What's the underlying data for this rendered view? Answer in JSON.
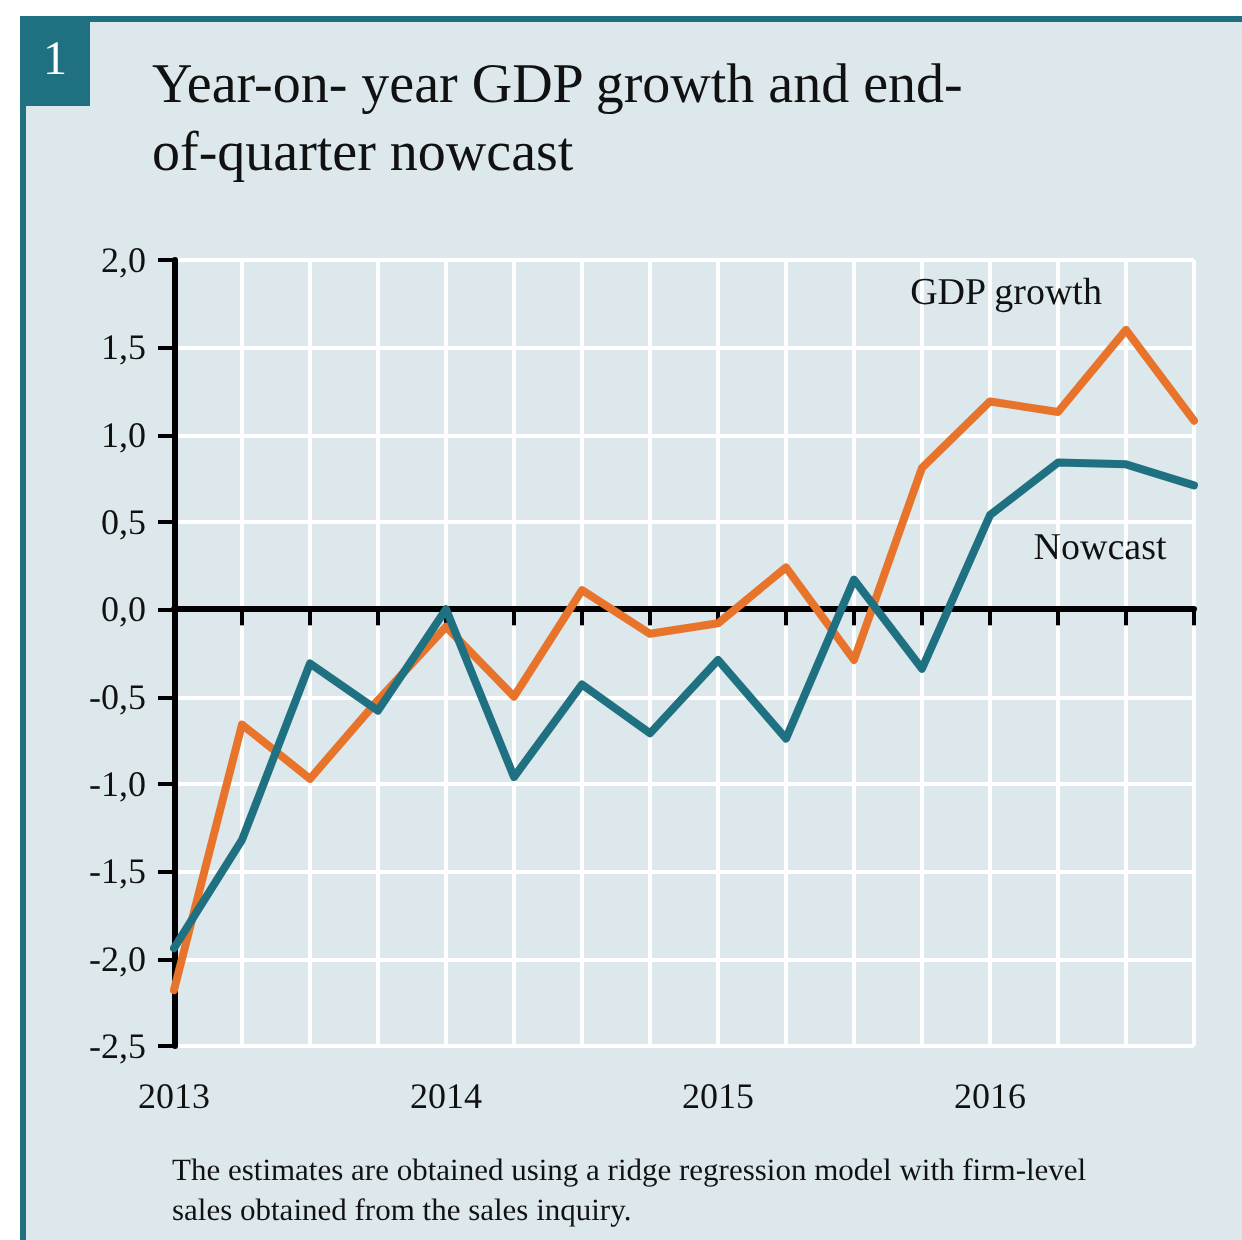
{
  "chart_data": {
    "type": "line",
    "title": "Year-on- year GDP growth and end-of-quarter nowcast",
    "annotations": [
      "1",
      "The estimates are obtained using a ridge regression model with firm-level sales obtained from the sales inquiry."
    ],
    "categories": [
      "2013",
      null,
      null,
      null,
      "2014",
      null,
      null,
      null,
      "2015",
      null,
      null,
      null,
      "2016",
      null,
      null,
      null
    ],
    "series": [
      {
        "name": "GDP growth",
        "color": "#e8732a",
        "values": [
          -2.18,
          -0.66,
          -0.97,
          -0.52,
          -0.1,
          -0.5,
          0.11,
          -0.14,
          -0.08,
          0.24,
          -0.29,
          0.81,
          1.19,
          1.13,
          1.6,
          1.08
        ]
      },
      {
        "name": "Nowcast",
        "color": "#1f7080",
        "values": [
          -1.94,
          -1.32,
          -0.31,
          -0.58,
          0.0,
          -0.96,
          -0.43,
          -0.71,
          -0.29,
          -0.74,
          0.17,
          -0.34,
          0.54,
          0.84,
          0.83,
          0.71
        ]
      }
    ],
    "ylim": [
      -2.5,
      2.0
    ],
    "yticks": [
      {
        "value": -2.5,
        "label": "-2,5"
      },
      {
        "value": -2.0,
        "label": "-2,0"
      },
      {
        "value": -1.5,
        "label": "-1,5"
      },
      {
        "value": -1.0,
        "label": "-1,0"
      },
      {
        "value": -0.5,
        "label": "-0,5"
      },
      {
        "value": 0,
        "label": "0,0"
      },
      {
        "value": 0.5,
        "label": "0,5"
      },
      {
        "value": 1.0,
        "label": "1,0"
      },
      {
        "value": 1.5,
        "label": "1,5"
      },
      {
        "value": 2.0,
        "label": "2,0"
      }
    ],
    "grid": true,
    "legend": false,
    "marker": "none",
    "line_style": "solid"
  }
}
